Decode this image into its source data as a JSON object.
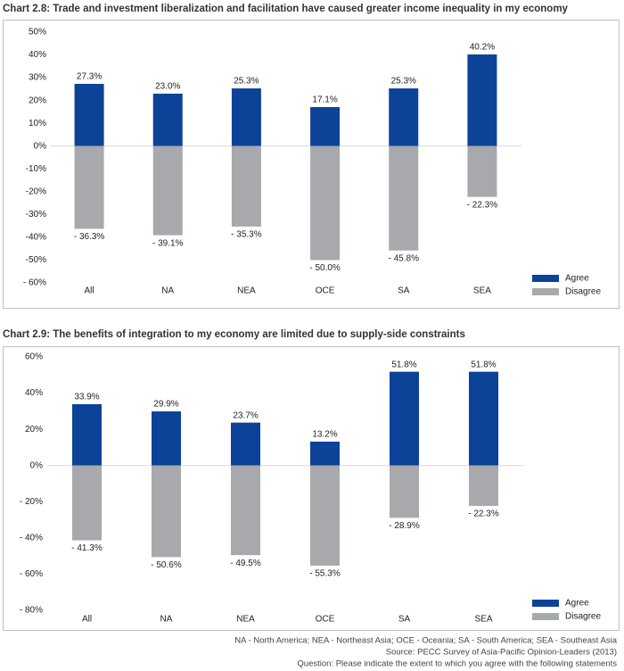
{
  "chart_data": [
    {
      "type": "bar",
      "title": "Chart 2.8: Trade and investment liberalization and facilitation have caused greater income inequality in my economy",
      "categories": [
        "All",
        "NA",
        "NEA",
        "OCE",
        "SA",
        "SEA"
      ],
      "series": [
        {
          "name": "Agree",
          "color": "#0d4299",
          "values": [
            27.3,
            23.0,
            25.3,
            17.1,
            25.3,
            40.2
          ],
          "value_labels": [
            "27.3%",
            "23.0%",
            "25.3%",
            "17.1%",
            "25.3%",
            "40.2%"
          ]
        },
        {
          "name": "Disagree",
          "color": "#a7a9ac",
          "values": [
            -36.3,
            -39.1,
            -35.3,
            -50.0,
            -45.8,
            -22.3
          ],
          "value_labels": [
            "- 36.3%",
            "- 39.1%",
            "- 35.3%",
            "- 50.0%",
            "- 45.8%",
            "- 22.3%"
          ]
        }
      ],
      "ylim": [
        -60,
        50
      ],
      "yticks": [
        {
          "value": 50,
          "label": "50%"
        },
        {
          "value": 40,
          "label": "40%"
        },
        {
          "value": 30,
          "label": "30%"
        },
        {
          "value": 20,
          "label": "20%"
        },
        {
          "value": 10,
          "label": "10%"
        },
        {
          "value": 0,
          "label": "0%"
        },
        {
          "value": -10,
          "label": "-10%"
        },
        {
          "value": -20,
          "label": "-20%"
        },
        {
          "value": -30,
          "label": "-30%"
        },
        {
          "value": -40,
          "label": "-40%"
        },
        {
          "value": -50,
          "label": "-50%"
        },
        {
          "value": -60,
          "label": "- 60%"
        }
      ],
      "legend": "bottom-right"
    },
    {
      "type": "bar",
      "title": "Chart 2.9: The benefits of integration to my economy are limited due to supply-side constraints",
      "categories": [
        "All",
        "NA",
        "NEA",
        "OCE",
        "SA",
        "SEA"
      ],
      "series": [
        {
          "name": "Agree",
          "color": "#0d4299",
          "values": [
            33.9,
            29.9,
            23.7,
            13.2,
            51.8,
            51.8
          ],
          "value_labels": [
            "33.9%",
            "29.9%",
            "23.7%",
            "13.2%",
            "51.8%",
            "51.8%"
          ]
        },
        {
          "name": "Disagree",
          "color": "#a7a9ac",
          "values": [
            -41.3,
            -50.6,
            -49.5,
            -55.3,
            -28.9,
            -22.3
          ],
          "value_labels": [
            "- 41.3%",
            "- 50.6%",
            "- 49.5%",
            "- 55.3%",
            "- 28.9%",
            "- 22.3%"
          ]
        }
      ],
      "ylim": [
        -80,
        60
      ],
      "yticks": [
        {
          "value": 60,
          "label": "60%"
        },
        {
          "value": 40,
          "label": "40%"
        },
        {
          "value": 20,
          "label": "20%"
        },
        {
          "value": 0,
          "label": "0%"
        },
        {
          "value": -20,
          "label": "- 20%"
        },
        {
          "value": -40,
          "label": "- 40%"
        },
        {
          "value": -60,
          "label": "- 60%"
        },
        {
          "value": -80,
          "label": "- 80%"
        }
      ],
      "legend": "bottom-right"
    }
  ],
  "notes": [
    "NA - North America; NEA - Northeast Asia; OCE - Oceania; SA - South America; SEA - Southeast Asia",
    "Source: PECC Survey of Asia-Pacific Opinion-Leaders (2013)",
    "Question: Please indicate the extent to which you agree with the following statements"
  ]
}
